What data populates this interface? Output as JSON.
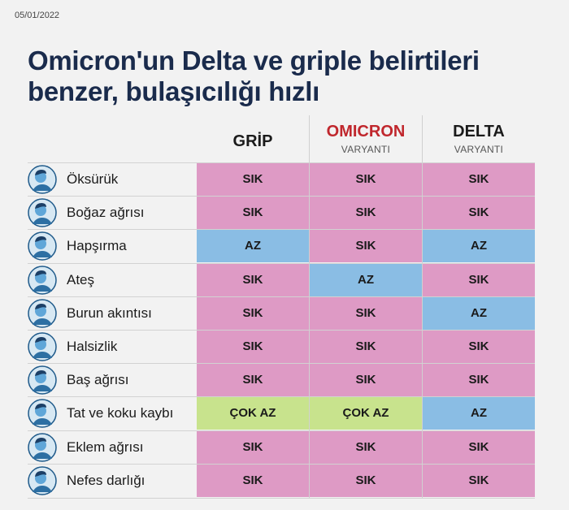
{
  "date": "05/01/2022",
  "title_line1": "Omicron'un Delta ve griple belirtileri",
  "title_line2": "benzer, bulaşıcılığı hızlı",
  "columns": {
    "grip": {
      "name": "GRİP",
      "sub": ""
    },
    "omicron": {
      "name": "OMICRON",
      "sub": "VARYANTI"
    },
    "delta": {
      "name": "DELTA",
      "sub": "VARYANTI"
    }
  },
  "colors": {
    "sik": "#de9ac5",
    "az": "#8abde4",
    "cok_az": "#c8e38d",
    "title": "#1a2b4c",
    "omicron": "#c0272d"
  },
  "rows": [
    {
      "symptom": "Öksürük",
      "icon": "coughing-person-icon",
      "grip": "SIK",
      "omicron": "SIK",
      "delta": "SIK"
    },
    {
      "symptom": "Boğaz ağrısı",
      "icon": "sore-throat-person-icon",
      "grip": "SIK",
      "omicron": "SIK",
      "delta": "SIK"
    },
    {
      "symptom": "Hapşırma",
      "icon": "sneezing-person-icon",
      "grip": "AZ",
      "omicron": "SIK",
      "delta": "AZ"
    },
    {
      "symptom": "Ateş",
      "icon": "fever-thermometer-person-icon",
      "grip": "SIK",
      "omicron": "AZ",
      "delta": "SIK"
    },
    {
      "symptom": "Burun akıntısı",
      "icon": "runny-nose-person-icon",
      "grip": "SIK",
      "omicron": "SIK",
      "delta": "AZ"
    },
    {
      "symptom": "Halsizlik",
      "icon": "fatigue-person-icon",
      "grip": "SIK",
      "omicron": "SIK",
      "delta": "SIK"
    },
    {
      "symptom": "Baş ağrısı",
      "icon": "headache-person-icon",
      "grip": "SIK",
      "omicron": "SIK",
      "delta": "SIK"
    },
    {
      "symptom": "Tat ve koku kaybı",
      "icon": "loss-of-taste-person-icon",
      "grip": "ÇOK AZ",
      "omicron": "ÇOK AZ",
      "delta": "AZ"
    },
    {
      "symptom": "Eklem ağrısı",
      "icon": "joint-pain-person-icon",
      "grip": "SIK",
      "omicron": "SIK",
      "delta": "SIK"
    },
    {
      "symptom": "Nefes darlığı",
      "icon": "shortness-of-breath-person-icon",
      "grip": "SIK",
      "omicron": "SIK",
      "delta": "SIK"
    }
  ]
}
